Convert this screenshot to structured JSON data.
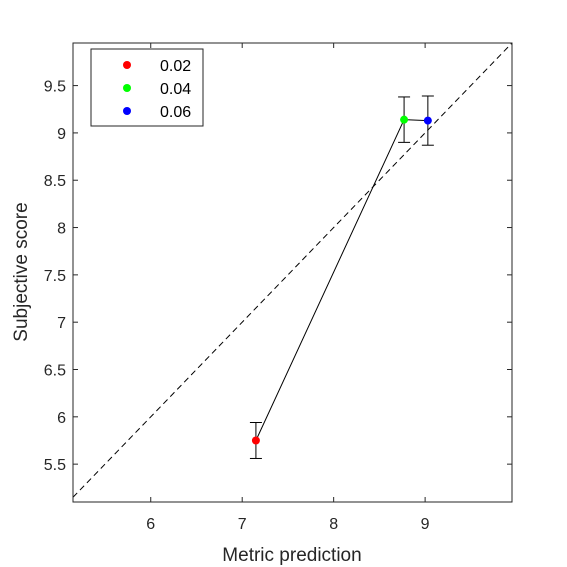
{
  "chart_data": {
    "type": "scatter",
    "title": "",
    "xlabel": "Metric prediction",
    "ylabel": "Subjective score",
    "xlim": [
      5.15,
      9.95
    ],
    "ylim": [
      5.1,
      9.95
    ],
    "xticks": [
      6,
      7,
      8,
      9
    ],
    "yticks": [
      5.5,
      6,
      6.5,
      7,
      7.5,
      8,
      8.5,
      9,
      9.5
    ],
    "xtick_labels": [
      "6",
      "7",
      "8",
      "9"
    ],
    "ytick_labels": [
      "5.5",
      "6",
      "6.5",
      "7",
      "7.5",
      "8",
      "8.5",
      "9",
      "9.5"
    ],
    "grid": false,
    "legend_position": "top-left",
    "identity_line": true,
    "connect_points": true,
    "series": [
      {
        "name": "0.02",
        "color": "#ff0000",
        "x": 7.15,
        "y": 5.75,
        "err_low": 0.19,
        "err_high": 0.19
      },
      {
        "name": "0.04",
        "color": "#00ff00",
        "x": 8.77,
        "y": 9.14,
        "err_low": 0.24,
        "err_high": 0.24
      },
      {
        "name": "0.06",
        "color": "#0000ff",
        "x": 9.03,
        "y": 9.13,
        "err_low": 0.26,
        "err_high": 0.26
      }
    ]
  }
}
